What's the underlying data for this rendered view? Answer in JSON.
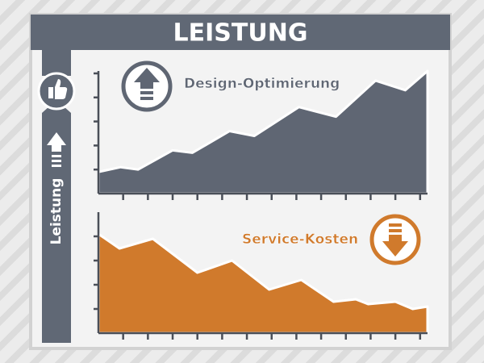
{
  "title": "LEISTUNG",
  "side_label": "Leistung",
  "chart_data": [
    {
      "type": "area",
      "label": "Design-Optimierung",
      "color": "#5f6673",
      "x": [
        0,
        0.9,
        1.6,
        3.0,
        3.8,
        5.3,
        6.3,
        8.1,
        9.6,
        11.2,
        12.4,
        13.3
      ],
      "values": [
        0.9,
        1.1,
        1.0,
        1.8,
        1.7,
        2.6,
        2.4,
        3.6,
        3.2,
        4.7,
        4.3,
        5.1
      ],
      "xlim": [
        0,
        13.3
      ],
      "xticks": [
        1,
        2,
        3,
        4,
        5,
        6,
        7,
        8,
        9,
        10,
        11,
        12,
        13
      ],
      "ylim": [
        0,
        5.1
      ],
      "yticks": [
        1,
        2,
        3,
        4,
        5
      ]
    },
    {
      "type": "area",
      "label": "Service-Kosten",
      "color": "#d07a2c",
      "x": [
        0,
        0.85,
        2.2,
        4.0,
        5.4,
        6.9,
        8.2,
        9.5,
        10.4,
        10.9,
        12.0,
        12.7,
        13.3
      ],
      "values": [
        4.1,
        3.5,
        3.9,
        2.5,
        3.0,
        1.8,
        2.2,
        1.3,
        1.4,
        1.2,
        1.3,
        1.0,
        1.1
      ],
      "xlim": [
        0,
        13.3
      ],
      "xticks": [
        1,
        2,
        3,
        4,
        5,
        6,
        7,
        8,
        9,
        10,
        11,
        12,
        13
      ],
      "ylim": [
        0,
        5
      ],
      "yticks": [
        1,
        2,
        3,
        4
      ]
    }
  ]
}
